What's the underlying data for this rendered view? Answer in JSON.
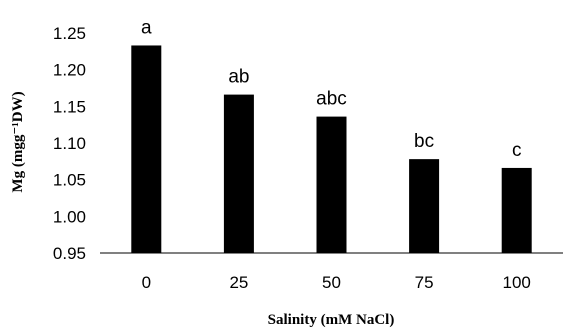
{
  "chart_data": {
    "type": "bar",
    "categories": [
      "0",
      "25",
      "50",
      "75",
      "100"
    ],
    "values": [
      1.233,
      1.166,
      1.136,
      1.078,
      1.066
    ],
    "significance_letters": [
      "a",
      "ab",
      "abc",
      "bc",
      "c"
    ],
    "xlabel": "Salinity (mM NaCl)",
    "ylabel": "Mg (mgg⁻¹DW)",
    "ylim": [
      0.95,
      1.25
    ],
    "yticks": [
      "0.95",
      "1.00",
      "1.05",
      "1.10",
      "1.15",
      "1.20",
      "1.25"
    ],
    "bar_color": "#000000",
    "grid": false,
    "legend": "none"
  }
}
